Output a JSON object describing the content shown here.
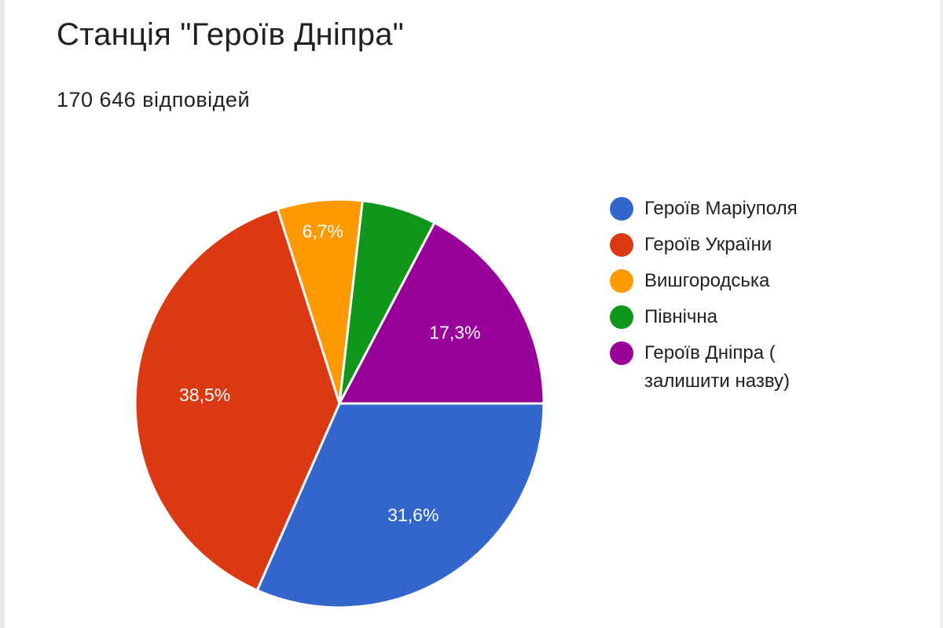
{
  "header": {
    "title": "Станція \"Героїв Дніпра\"",
    "responses": "170 646 відповідей"
  },
  "chart_data": {
    "type": "pie",
    "title": "Станція \"Героїв Дніпра\"",
    "subtitle": "170 646 відповідей",
    "total_responses": 170646,
    "legend_position": "right",
    "categories": [
      "Героїв Маріуполя",
      "Героїв України",
      "Вишгородська",
      "Північна",
      "Героїв Дніпра ( залишити назву)"
    ],
    "values": [
      31.6,
      38.5,
      6.7,
      5.9,
      17.3
    ],
    "labels": [
      "31,6%",
      "38,5%",
      "6,7%",
      "",
      "17,3%"
    ],
    "colors": [
      "#3366cc",
      "#dc3912",
      "#ff9900",
      "#109618",
      "#990099"
    ]
  },
  "legend": {
    "items": [
      {
        "label": "Героїв Маріуполя",
        "color": "#3366cc"
      },
      {
        "label": "Героїв України",
        "color": "#dc3912"
      },
      {
        "label": "Вишгородська",
        "color": "#ff9900"
      },
      {
        "label": "Північна",
        "color": "#109618"
      },
      {
        "label": "Героїв Дніпра ( залишити назву)",
        "color": "#990099"
      }
    ]
  }
}
